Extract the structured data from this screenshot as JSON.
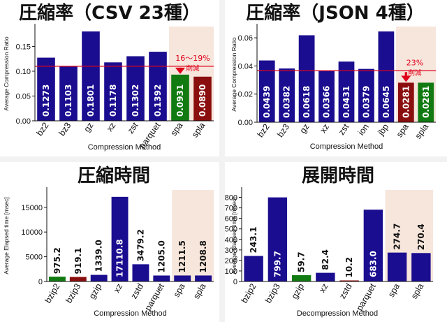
{
  "chart_data": [
    {
      "type": "bar",
      "title": "圧縮率（CSV 23種）",
      "xlabel": "Compression Method",
      "ylabel": "Average Compression Ratio",
      "categories": [
        "bz2",
        "bz3",
        "gz",
        "xz",
        "zst",
        "parquet",
        "spa",
        "spla"
      ],
      "values": [
        0.1273,
        0.1103,
        0.1801,
        0.1178,
        0.1302,
        0.1392,
        0.0931,
        0.089
      ],
      "value_labels": [
        "0.1273",
        "0.1103",
        "0.1801",
        "0.1178",
        "0.1302",
        "0.1392",
        "0.0931",
        "0.0890"
      ],
      "colors": [
        "#1a0d8f",
        "#1a0d8f",
        "#1a0d8f",
        "#1a0d8f",
        "#1a0d8f",
        "#1a0d8f",
        "#117a11",
        "#8b0e0e"
      ],
      "ylim": [
        0,
        0.19
      ],
      "yticks": [
        0,
        0.05,
        0.1,
        0.15
      ],
      "ytick_labels": [
        "0.00",
        "0.05",
        "0.10",
        "0.15"
      ],
      "reference_line": 0.11,
      "highlight_from": 6,
      "annotation": [
        "16～19%",
        "削減"
      ]
    },
    {
      "type": "bar",
      "title": "圧縮率（JSON 4種）",
      "xlabel": "Compression Method",
      "ylabel": "Average Compression Ratio",
      "categories": [
        "bz2",
        "bz3",
        "gz",
        "xz",
        "zst",
        "ion",
        "jbp",
        "spa",
        "spla"
      ],
      "values": [
        0.0439,
        0.0382,
        0.0618,
        0.0366,
        0.0431,
        0.0379,
        0.0645,
        0.0281,
        0.0281
      ],
      "value_labels": [
        "0.0439",
        "0.0382",
        "0.0618",
        "0.0366",
        "0.0431",
        "0.0379",
        "0.0645",
        "0.0281",
        "0.0281"
      ],
      "colors": [
        "#1a0d8f",
        "#1a0d8f",
        "#1a0d8f",
        "#1a0d8f",
        "#1a0d8f",
        "#1a0d8f",
        "#1a0d8f",
        "#8b0e0e",
        "#117a11"
      ],
      "ylim": [
        0,
        0.068
      ],
      "yticks": [
        0,
        0.02,
        0.04,
        0.06
      ],
      "ytick_labels": [
        "0.00",
        "0.02",
        "0.04",
        "0.06"
      ],
      "reference_line": 0.0366,
      "highlight_from": 7,
      "annotation": [
        "23%",
        "削減"
      ]
    },
    {
      "type": "bar",
      "title": "圧縮時間",
      "xlabel": "Compression Method",
      "ylabel": "Average Elapsed time  [msec]",
      "categories": [
        "bzip2",
        "bzip3",
        "gzip",
        "xz",
        "zstd",
        "parquet",
        "spa",
        "spla"
      ],
      "values": [
        975.2,
        919.1,
        1339.0,
        17110.8,
        3479.2,
        1205.0,
        1211.5,
        1208.8
      ],
      "value_labels": [
        "975.2",
        "919.1",
        "1339.0",
        "17110.8",
        "3479.2",
        "1205.0",
        "1211.5",
        "1208.8"
      ],
      "colors": [
        "#117a11",
        "#8b0e0e",
        "#1a0d8f",
        "#1a0d8f",
        "#1a0d8f",
        "#1a0d8f",
        "#1a0d8f",
        "#1a0d8f"
      ],
      "ylim": [
        0,
        18500
      ],
      "yticks": [
        0,
        5000,
        10000,
        15000
      ],
      "ytick_labels": [
        "0",
        "5000",
        "10000",
        "15000"
      ],
      "highlight_from": 6
    },
    {
      "type": "bar",
      "title": "展開時間",
      "xlabel": "Decompression Method",
      "ylabel": "Average Elapsed time  [msec]",
      "categories": [
        "bzip2",
        "bzip3",
        "gzip",
        "xz",
        "zstd",
        "parquet",
        "spa",
        "spla"
      ],
      "values": [
        243.1,
        799.7,
        59.7,
        82.4,
        10.2,
        683.0,
        274.7,
        270.4
      ],
      "value_labels": [
        "243.1",
        "799.7",
        "59.7",
        "82.4",
        "10.2",
        "683.0",
        "274.7",
        "270.4"
      ],
      "colors": [
        "#1a0d8f",
        "#1a0d8f",
        "#117a11",
        "#1a0d8f",
        "#8b0e0e",
        "#1a0d8f",
        "#1a0d8f",
        "#1a0d8f"
      ],
      "ylim": [
        0,
        870
      ],
      "yticks": [
        0,
        100,
        200,
        300,
        400,
        500,
        600,
        700,
        800
      ],
      "ytick_labels": [
        "0",
        "100",
        "200",
        "300",
        "400",
        "500",
        "600",
        "700",
        "800"
      ],
      "highlight_from": 6
    }
  ]
}
